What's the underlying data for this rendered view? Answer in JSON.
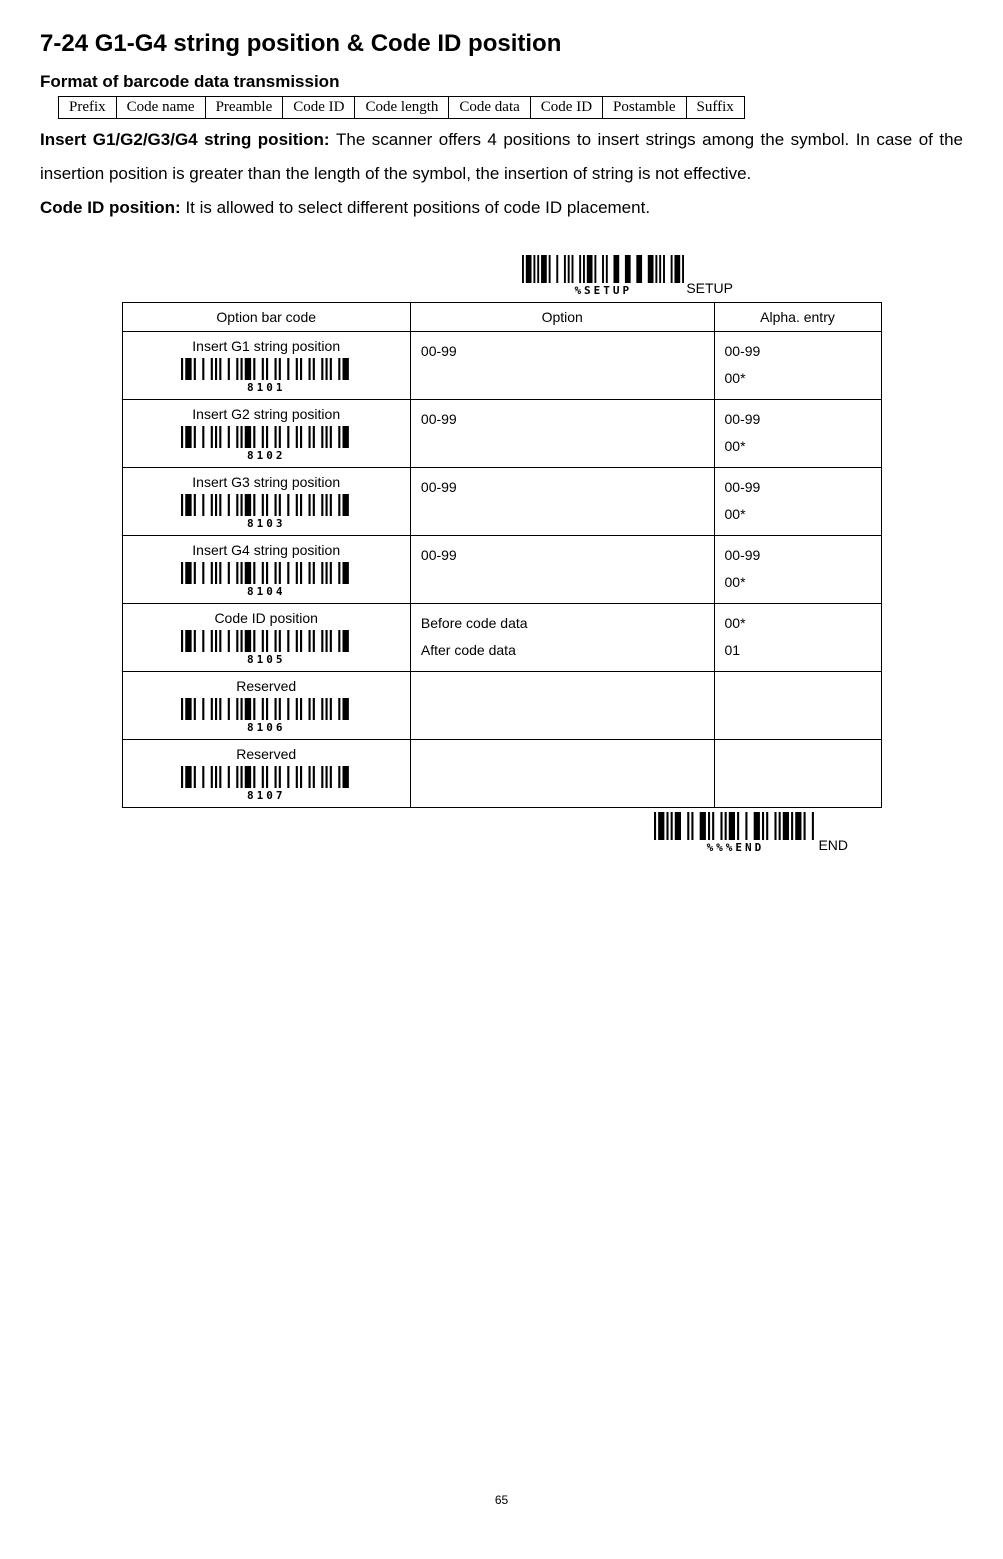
{
  "title": "7-24 G1-G4 string position & Code ID position",
  "format_label": "Format of barcode data transmission",
  "format_cells": [
    "Prefix",
    "Code name",
    "Preamble",
    "Code ID",
    "Code length",
    "Code data",
    "Code ID",
    "Postamble",
    "Suffix"
  ],
  "para1_bold": "Insert G1/G2/G3/G4 string position: ",
  "para1_rest": "The scanner offers 4 positions to insert strings among the symbol. In case of the insertion position is greater than the length of the symbol, the insertion of string is not effective.",
  "para2_bold": "Code ID position: ",
  "para2_rest": "It is allowed to select different positions of code ID placement.",
  "setup": {
    "barcode_caption": "%SETUP",
    "label": "SETUP",
    "barcode_widths": [
      1,
      1,
      3,
      1,
      1,
      1,
      1,
      1,
      3,
      1,
      1,
      3,
      1,
      3,
      1,
      1,
      1,
      1,
      1,
      3,
      1,
      1,
      1,
      1,
      3,
      1,
      1,
      3,
      1,
      1,
      1,
      3,
      3,
      3,
      3,
      3,
      3,
      3,
      3,
      1,
      1,
      1,
      1,
      1,
      1,
      3,
      1,
      1,
      3,
      1,
      1
    ],
    "barcode_height": 28,
    "barcode_width": 162
  },
  "end": {
    "barcode_caption": "%%%END",
    "label": "END",
    "barcode_widths": [
      1,
      1,
      3,
      1,
      1,
      1,
      1,
      1,
      3,
      3,
      1,
      1,
      1,
      3,
      3,
      1,
      1,
      1,
      1,
      3,
      1,
      1,
      1,
      1,
      3,
      1,
      1,
      3,
      1,
      3,
      3,
      1,
      1,
      1,
      1,
      3,
      1,
      1,
      1,
      1,
      3,
      1,
      1,
      1,
      3,
      1,
      1,
      3,
      1,
      1
    ],
    "barcode_height": 28,
    "barcode_width": 162
  },
  "headers": [
    "Option bar code",
    "Option",
    "Alpha. entry"
  ],
  "rows": [
    {
      "label": "Insert G1 string position",
      "code": "8101",
      "options": [
        "00-99"
      ],
      "alpha": [
        "00-99",
        "00*"
      ]
    },
    {
      "label": "Insert G2 string position",
      "code": "8102",
      "options": [
        "00-99"
      ],
      "alpha": [
        "00-99",
        "00*"
      ]
    },
    {
      "label": "Insert G3 string position",
      "code": "8103",
      "options": [
        "00-99"
      ],
      "alpha": [
        "00-99",
        "00*"
      ]
    },
    {
      "label": "Insert G4 string position",
      "code": "8104",
      "options": [
        "00-99"
      ],
      "alpha": [
        "00-99",
        "00*"
      ]
    },
    {
      "label": "Code ID position",
      "code": "8105",
      "options": [
        "Before code data",
        "After code data"
      ],
      "alpha": [
        "00*",
        "01"
      ]
    },
    {
      "label": "Reserved",
      "code": "8106",
      "options": [],
      "alpha": []
    },
    {
      "label": "Reserved",
      "code": "8107",
      "options": [],
      "alpha": []
    }
  ],
  "row_barcode": {
    "widths": [
      1,
      1,
      3,
      1,
      1,
      3,
      1,
      3,
      1,
      1,
      1,
      1,
      1,
      3,
      1,
      3,
      1,
      1,
      1,
      1,
      3,
      1,
      1,
      3,
      1,
      1,
      1,
      3,
      1,
      1,
      1,
      3,
      1,
      3,
      1,
      1,
      1,
      3,
      1,
      1,
      1,
      3,
      1,
      1,
      1,
      1,
      1,
      3,
      1,
      1,
      3,
      1
    ],
    "height": 22,
    "width": 170
  },
  "page_number": "65"
}
